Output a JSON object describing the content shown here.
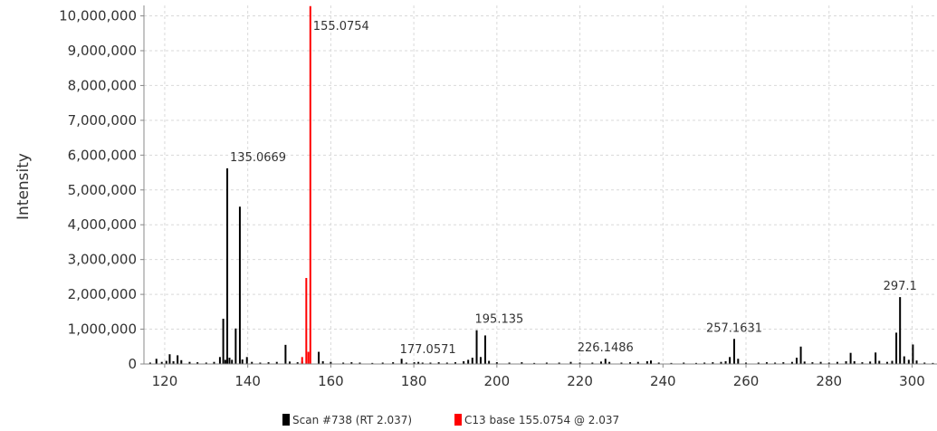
{
  "chart_data": {
    "type": "bar",
    "title": "",
    "xlabel": "",
    "ylabel": "Intensity",
    "xlim": [
      115,
      306
    ],
    "ylim": [
      0,
      10300000
    ],
    "x_ticks": [
      120,
      140,
      160,
      180,
      200,
      220,
      240,
      260,
      280,
      300
    ],
    "x_tick_labels": [
      "120",
      "140",
      "160",
      "180",
      "200",
      "220",
      "240",
      "260",
      "280",
      "300"
    ],
    "y_ticks": [
      0,
      1000000,
      2000000,
      3000000,
      4000000,
      5000000,
      6000000,
      7000000,
      8000000,
      9000000,
      10000000
    ],
    "y_tick_labels": [
      "0",
      "1,000,000",
      "2,000,000",
      "3,000,000",
      "4,000,000",
      "5,000,000",
      "6,000,000",
      "7,000,000",
      "8,000,000",
      "9,000,000",
      "10,000,000"
    ],
    "grid": true,
    "legend_position": "bottom-center",
    "series": [
      {
        "name": "Scan #738 (RT 2.037)",
        "color": "#000000",
        "x": [
          116.5,
          118.0,
          119.3,
          120.4,
          121.2,
          122.1,
          123.1,
          124.0,
          126.0,
          127.9,
          130.0,
          131.9,
          133.3,
          134.1,
          134.6,
          135.0669,
          135.6,
          136.2,
          137.1,
          138.1,
          138.7,
          139.8,
          141.0,
          143.0,
          145.0,
          147.0,
          149.1,
          150.1,
          152.0,
          153.1,
          157.1,
          158.1,
          160.0,
          163.0,
          165.0,
          167.0,
          170.0,
          172.5,
          175.0,
          177.0571,
          178.2,
          180.1,
          181.1,
          182.1,
          184.0,
          186.0,
          188.0,
          190.0,
          192.0,
          193.1,
          194.1,
          195.135,
          196.1,
          197.2,
          198.1,
          200.0,
          203.0,
          206.0,
          209.0,
          212.0,
          215.0,
          217.8,
          220.0,
          223.0,
          225.1,
          226.1486,
          227.1,
          230.0,
          232.1,
          234.0,
          236.2,
          237.1,
          239.0,
          242.0,
          245.0,
          248.0,
          250.0,
          252.0,
          254.0,
          255.1,
          256.1,
          257.1631,
          258.1,
          260.0,
          263.0,
          265.0,
          267.0,
          269.0,
          271.1,
          272.2,
          273.2,
          274.1,
          276.0,
          278.0,
          280.0,
          282.0,
          284.1,
          285.2,
          286.1,
          288.0,
          289.9,
          291.2,
          292.1,
          294.0,
          295.2,
          296.2,
          297.1,
          298.1,
          299.2,
          300.2,
          301.1,
          303.0,
          305.0
        ],
        "values": [
          40000,
          150000,
          60000,
          90000,
          280000,
          80000,
          250000,
          110000,
          60000,
          50000,
          40000,
          60000,
          200000,
          1300000,
          120000,
          5620000,
          180000,
          120000,
          1020000,
          4520000,
          130000,
          200000,
          60000,
          40000,
          50000,
          60000,
          550000,
          70000,
          50000,
          70000,
          350000,
          80000,
          60000,
          40000,
          50000,
          40000,
          30000,
          40000,
          50000,
          150000,
          40000,
          50000,
          60000,
          40000,
          40000,
          50000,
          40000,
          50000,
          80000,
          120000,
          180000,
          970000,
          200000,
          820000,
          90000,
          50000,
          40000,
          50000,
          30000,
          40000,
          40000,
          60000,
          40000,
          40000,
          70000,
          150000,
          60000,
          40000,
          50000,
          60000,
          80000,
          100000,
          40000,
          30000,
          40000,
          30000,
          40000,
          50000,
          60000,
          80000,
          200000,
          720000,
          150000,
          40000,
          40000,
          50000,
          40000,
          50000,
          60000,
          180000,
          500000,
          70000,
          50000,
          60000,
          40000,
          60000,
          80000,
          320000,
          80000,
          50000,
          70000,
          330000,
          90000,
          60000,
          90000,
          900000,
          1920000,
          220000,
          120000,
          560000,
          100000,
          40000,
          30000
        ]
      },
      {
        "name": "C13 base 155.0754 @ 2.037",
        "color": "#ff0000",
        "x": [
          153.1,
          154.1,
          154.6,
          155.0754
        ],
        "values": [
          200000,
          2470000,
          350000,
          10280000
        ]
      }
    ],
    "peak_labels": [
      {
        "text": "155.0754",
        "x": 155.0754,
        "y": 10280000,
        "align": "start"
      },
      {
        "text": "135.0669",
        "x": 135.0669,
        "y": 5620000,
        "align": "start"
      },
      {
        "text": "195.135",
        "x": 195.135,
        "y": 970000,
        "align": "start"
      },
      {
        "text": "177.0571",
        "x": 177.0571,
        "y": 150000,
        "align": "start"
      },
      {
        "text": "226.1486",
        "x": 226.1486,
        "y": 150000,
        "align": "middle"
      },
      {
        "text": "257.1631",
        "x": 257.1631,
        "y": 720000,
        "align": "middle"
      },
      {
        "text": "297.1",
        "x": 297.1,
        "y": 1920000,
        "align": "middle"
      }
    ]
  }
}
